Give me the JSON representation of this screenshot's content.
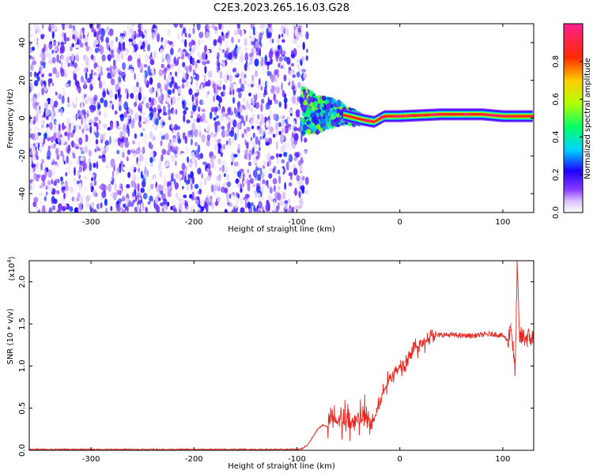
{
  "figure_title": "C2E3.2023.265.16.03.G28",
  "colors": {
    "snr_line": "#e8261f",
    "colormap": [
      "#ffffff",
      "#8a3dff",
      "#1e00ff",
      "#00d2ff",
      "#00ff6a",
      "#b4ff00",
      "#ffcc00",
      "#ff2a00",
      "#ff1f8f"
    ]
  },
  "chart_data": [
    {
      "type": "heatmap",
      "title": "",
      "xlabel": "Height of straight line (km)",
      "ylabel": "Frequency (Hz)",
      "xlim": [
        -360,
        130
      ],
      "ylim": [
        -50,
        50
      ],
      "xticks": [
        -300,
        -200,
        -100,
        0,
        100
      ],
      "yticks": [
        -40,
        -20,
        0,
        20,
        40
      ],
      "grid": false,
      "colorbar": {
        "label": "Normalized spectral amplitude",
        "range": [
          0,
          1
        ],
        "ticks": [
          "0.0",
          "0.2",
          "0.4",
          "0.6",
          "0.8"
        ],
        "tick_values": [
          0.0,
          0.2,
          0.4,
          0.6,
          0.8
        ]
      },
      "regions": [
        {
          "description": "broadband noise",
          "x_range": [
            -360,
            -90
          ],
          "freq_range": [
            -50,
            50
          ],
          "amplitude": 0.1
        },
        {
          "description": "transition signal",
          "x_range": [
            -95,
            -35
          ],
          "freq_range": [
            -12,
            8
          ],
          "amplitude": 0.45
        },
        {
          "description": "steady carrier line",
          "x_range": [
            -35,
            130
          ],
          "freq_center": 1,
          "freq_halfwidth": 2,
          "amplitude": 0.85
        }
      ],
      "carrier_track": [
        {
          "x": -95,
          "f": 4
        },
        {
          "x": -80,
          "f": 2
        },
        {
          "x": -65,
          "f": 3
        },
        {
          "x": -50,
          "f": 1
        },
        {
          "x": -35,
          "f": -1
        },
        {
          "x": -25,
          "f": -2
        },
        {
          "x": -15,
          "f": 1
        },
        {
          "x": 0,
          "f": 1
        },
        {
          "x": 40,
          "f": 2
        },
        {
          "x": 80,
          "f": 2
        },
        {
          "x": 100,
          "f": 1
        },
        {
          "x": 130,
          "f": 1
        }
      ]
    },
    {
      "type": "line",
      "title": "",
      "xlabel": "Height of straight line (km)",
      "ylabel": "SNR (10 * v/v)",
      "y_multiplier": "(x10",
      "y_multiplier_exp": "4",
      "y_multiplier_close": ")",
      "xlim": [
        -360,
        130
      ],
      "ylim": [
        0,
        2.25
      ],
      "xticks": [
        -300,
        -200,
        -100,
        0,
        100
      ],
      "yticks": [
        "0.0",
        "0.5",
        "1.0",
        "1.5",
        "2.0"
      ],
      "ytick_values": [
        0.0,
        0.5,
        1.0,
        1.5,
        2.0
      ],
      "grid": false,
      "series": [
        {
          "x": [
            -360,
            -300,
            -250,
            -200,
            -150,
            -100,
            -95,
            -90,
            -85,
            -80,
            -75,
            -70,
            -65,
            -60,
            -55,
            -50,
            -45,
            -40,
            -35,
            -30,
            -25,
            -20,
            -15,
            -10,
            -5,
            0,
            5,
            10,
            15,
            20,
            25,
            30,
            40,
            50,
            60,
            70,
            80,
            90,
            100,
            105,
            108,
            110,
            112,
            114,
            116,
            120,
            130
          ],
          "y": [
            0.01,
            0.01,
            0.01,
            0.01,
            0.01,
            0.01,
            0.02,
            0.06,
            0.15,
            0.25,
            0.3,
            0.28,
            0.35,
            0.3,
            0.33,
            0.28,
            0.35,
            0.32,
            0.38,
            0.3,
            0.35,
            0.55,
            0.72,
            0.85,
            0.92,
            1.0,
            1.05,
            1.15,
            1.22,
            1.25,
            1.3,
            1.35,
            1.37,
            1.37,
            1.36,
            1.36,
            1.37,
            1.38,
            1.36,
            1.3,
            1.5,
            1.2,
            0.9,
            2.2,
            1.35,
            1.34,
            1.33
          ]
        }
      ]
    }
  ]
}
